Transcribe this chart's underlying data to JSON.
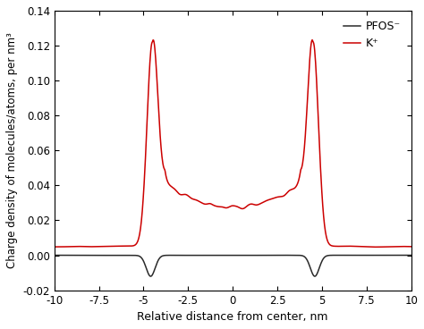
{
  "title": "",
  "xlabel": "Relative distance from center, nm",
  "ylabel": "Charge density of molecules/atoms, per nm³",
  "xlim": [
    -10,
    10
  ],
  "ylim": [
    -0.02,
    0.14
  ],
  "xticks": [
    -10,
    -7.5,
    -5.0,
    -2.5,
    0.0,
    2.5,
    5.0,
    7.5,
    10.0
  ],
  "yticks": [
    -0.02,
    0.0,
    0.02,
    0.04,
    0.06,
    0.08,
    0.1,
    0.12,
    0.14
  ],
  "pfos_color": "#2a2a2a",
  "k_color": "#cc0000",
  "legend_pfos": "PFOS⁻",
  "legend_k": "K⁺",
  "linewidth": 1.1
}
